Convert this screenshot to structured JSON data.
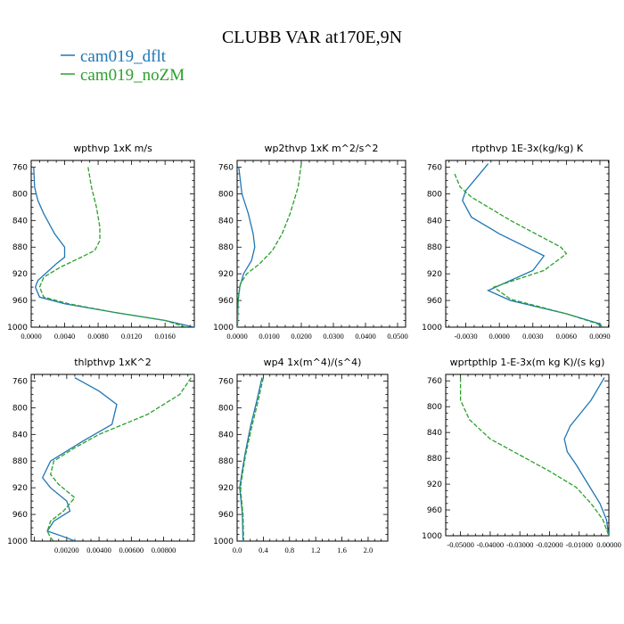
{
  "figure": {
    "title": "CLUBB VAR at170E,9N",
    "legend": [
      {
        "label": "cam019_dflt",
        "color": "#1f77b4",
        "dash": "solid"
      },
      {
        "label": "cam019_noZM",
        "color": "#2ca02c",
        "dash": "dashed"
      }
    ]
  },
  "chart_data": [
    {
      "type": "line",
      "title": "wpthvp   1xK m/s",
      "xlim": [
        0,
        0.0195
      ],
      "ylim": [
        1000,
        750
      ],
      "xticks": [
        {
          "v": 0.0,
          "label": "0.0000"
        },
        {
          "v": 0.004,
          "label": "0.0040"
        },
        {
          "v": 0.008,
          "label": "0.0080"
        },
        {
          "v": 0.012,
          "label": "0.0120"
        },
        {
          "v": 0.016,
          "label": "0.0160"
        }
      ],
      "yticks": [
        760,
        800,
        840,
        880,
        920,
        960,
        1000
      ],
      "series": [
        {
          "name": "cam019_dflt",
          "points": [
            [
              0.0003,
              760
            ],
            [
              0.0004,
              790
            ],
            [
              0.0008,
              810
            ],
            [
              0.0015,
              830
            ],
            [
              0.0028,
              860
            ],
            [
              0.004,
              880
            ],
            [
              0.004,
              895
            ],
            [
              0.003,
              905
            ],
            [
              0.0008,
              930
            ],
            [
              0.0005,
              940
            ],
            [
              0.001,
              955
            ],
            [
              0.004,
              965
            ],
            [
              0.01,
              978
            ],
            [
              0.016,
              990
            ],
            [
              0.0195,
              1000
            ]
          ]
        },
        {
          "name": "cam019_noZM",
          "points": [
            [
              0.0068,
              760
            ],
            [
              0.0072,
              790
            ],
            [
              0.0078,
              820
            ],
            [
              0.0082,
              850
            ],
            [
              0.0082,
              870
            ],
            [
              0.0076,
              885
            ],
            [
              0.006,
              895
            ],
            [
              0.0035,
              910
            ],
            [
              0.0015,
              925
            ],
            [
              0.001,
              940
            ],
            [
              0.0015,
              955
            ],
            [
              0.0045,
              965
            ],
            [
              0.01,
              978
            ],
            [
              0.016,
              990
            ],
            [
              0.0185,
              1000
            ]
          ]
        }
      ]
    },
    {
      "type": "line",
      "title": "wp2thvp   1xK m^2/s^2",
      "xlim": [
        0,
        0.0525
      ],
      "ylim": [
        1000,
        750
      ],
      "xticks": [
        {
          "v": 0.0,
          "label": "0.0000"
        },
        {
          "v": 0.01,
          "label": "0.0100"
        },
        {
          "v": 0.02,
          "label": "0.0200"
        },
        {
          "v": 0.03,
          "label": "0.0300"
        },
        {
          "v": 0.04,
          "label": "0.0400"
        },
        {
          "v": 0.05,
          "label": "0.0500"
        }
      ],
      "yticks": [
        760,
        800,
        840,
        880,
        920,
        960,
        1000
      ],
      "series": [
        {
          "name": "cam019_dflt",
          "points": [
            [
              0.0005,
              760
            ],
            [
              0.0015,
              800
            ],
            [
              0.0035,
              830
            ],
            [
              0.005,
              860
            ],
            [
              0.0055,
              880
            ],
            [
              0.0045,
              900
            ],
            [
              0.002,
              920
            ],
            [
              0.0008,
              940
            ],
            [
              0.0003,
              960
            ],
            [
              0.0001,
              1000
            ]
          ]
        },
        {
          "name": "cam019_noZM",
          "points": [
            [
              0.02,
              755
            ],
            [
              0.019,
              790
            ],
            [
              0.0165,
              830
            ],
            [
              0.014,
              860
            ],
            [
              0.011,
              885
            ],
            [
              0.007,
              905
            ],
            [
              0.003,
              920
            ],
            [
              0.001,
              935
            ],
            [
              0.0003,
              960
            ],
            [
              0.0001,
              1000
            ]
          ]
        }
      ]
    },
    {
      "type": "line",
      "title": "rtpthvp   1E-3x(kg/kg) K",
      "xlim": [
        -0.0048,
        0.0098
      ],
      "ylim": [
        1000,
        750
      ],
      "xticks": [
        {
          "v": -0.003,
          "label": "-0.0030"
        },
        {
          "v": 0.0,
          "label": "0.0000"
        },
        {
          "v": 0.003,
          "label": "0.0030"
        },
        {
          "v": 0.006,
          "label": "0.0060"
        },
        {
          "v": 0.009,
          "label": "0.0090"
        }
      ],
      "yticks": [
        760,
        800,
        840,
        880,
        920,
        960,
        1000
      ],
      "series": [
        {
          "name": "cam019_dflt",
          "points": [
            [
              -0.001,
              755
            ],
            [
              -0.002,
              775
            ],
            [
              -0.003,
              795
            ],
            [
              -0.0033,
              810
            ],
            [
              -0.0025,
              835
            ],
            [
              0.0,
              860
            ],
            [
              0.004,
              893
            ],
            [
              0.003,
              915
            ],
            [
              -0.001,
              945
            ],
            [
              0.001,
              960
            ],
            [
              0.006,
              980
            ],
            [
              0.009,
              995
            ],
            [
              0.0092,
              1000
            ]
          ]
        },
        {
          "name": "cam019_noZM",
          "points": [
            [
              -0.004,
              770
            ],
            [
              -0.0035,
              790
            ],
            [
              -0.0025,
              805
            ],
            [
              0.001,
              840
            ],
            [
              0.0055,
              880
            ],
            [
              0.006,
              890
            ],
            [
              0.004,
              915
            ],
            [
              -0.0005,
              940
            ],
            [
              0.001,
              958
            ],
            [
              0.006,
              980
            ],
            [
              0.0088,
              995
            ],
            [
              0.0092,
              1000
            ]
          ]
        }
      ]
    },
    {
      "type": "line",
      "title": "thlpthvp   1xK^2",
      "xlim": [
        -0.0002,
        0.0099
      ],
      "ylim": [
        1000,
        750
      ],
      "xticks": [
        {
          "v": 0.002,
          "label": "0.00200"
        },
        {
          "v": 0.004,
          "label": "0.00400"
        },
        {
          "v": 0.006,
          "label": "0.00600"
        },
        {
          "v": 0.008,
          "label": "0.00800"
        }
      ],
      "yticks": [
        760,
        800,
        840,
        880,
        920,
        960,
        1000
      ],
      "series": [
        {
          "name": "cam019_dflt",
          "points": [
            [
              0.0025,
              755
            ],
            [
              0.004,
              775
            ],
            [
              0.0051,
              795
            ],
            [
              0.0048,
              825
            ],
            [
              0.003,
              850
            ],
            [
              0.001,
              880
            ],
            [
              0.0005,
              905
            ],
            [
              0.001,
              920
            ],
            [
              0.002,
              940
            ],
            [
              0.0022,
              955
            ],
            [
              0.0012,
              970
            ],
            [
              0.0008,
              985
            ],
            [
              0.002,
              995
            ],
            [
              0.0025,
              1000
            ]
          ]
        },
        {
          "name": "cam019_noZM",
          "points": [
            [
              0.0097,
              755
            ],
            [
              0.009,
              780
            ],
            [
              0.007,
              810
            ],
            [
              0.004,
              840
            ],
            [
              0.0025,
              860
            ],
            [
              0.0012,
              880
            ],
            [
              0.001,
              900
            ],
            [
              0.0015,
              915
            ],
            [
              0.0025,
              935
            ],
            [
              0.0018,
              955
            ],
            [
              0.001,
              970
            ],
            [
              0.0008,
              985
            ],
            [
              0.001,
              995
            ],
            [
              0.0012,
              1000
            ]
          ]
        }
      ]
    },
    {
      "type": "line",
      "title": "wp4   1x(m^4)/(s^4)",
      "xlim": [
        0,
        2.3
      ],
      "ylim": [
        1000,
        750
      ],
      "xticks": [
        {
          "v": 0.0,
          "label": "0.0"
        },
        {
          "v": 0.4,
          "label": "0.4"
        },
        {
          "v": 0.8,
          "label": "0.8"
        },
        {
          "v": 1.2,
          "label": "1.2"
        },
        {
          "v": 1.6,
          "label": "1.6"
        },
        {
          "v": 2.0,
          "label": "2.0"
        }
      ],
      "yticks": [
        760,
        800,
        840,
        880,
        920,
        960,
        1000
      ],
      "series": [
        {
          "name": "cam019_dflt",
          "points": [
            [
              0.38,
              755
            ],
            [
              0.3,
              790
            ],
            [
              0.2,
              830
            ],
            [
              0.12,
              870
            ],
            [
              0.07,
              900
            ],
            [
              0.04,
              920
            ],
            [
              0.06,
              940
            ],
            [
              0.08,
              960
            ],
            [
              0.09,
              1000
            ]
          ]
        },
        {
          "name": "cam019_noZM",
          "points": [
            [
              0.4,
              755
            ],
            [
              0.32,
              790
            ],
            [
              0.22,
              830
            ],
            [
              0.13,
              870
            ],
            [
              0.08,
              900
            ],
            [
              0.05,
              920
            ],
            [
              0.07,
              940
            ],
            [
              0.09,
              960
            ],
            [
              0.1,
              1000
            ]
          ]
        }
      ]
    },
    {
      "type": "line",
      "title": "wprtpthlp   1-E-3x(m kg K)/(s kg)",
      "xlim": [
        -0.055,
        0.0
      ],
      "ylim": [
        1000,
        750
      ],
      "xticks": [
        {
          "v": -0.05,
          "label": "-0.05000"
        },
        {
          "v": -0.04,
          "label": "-0.04000"
        },
        {
          "v": -0.03,
          "label": "-0.03000"
        },
        {
          "v": -0.02,
          "label": "-0.02000"
        },
        {
          "v": -0.01,
          "label": "-0.01000"
        },
        {
          "v": 0.0,
          "label": "0.00000"
        }
      ],
      "yticks": [
        760,
        800,
        840,
        880,
        920,
        960,
        1000
      ],
      "series": [
        {
          "name": "cam019_dflt",
          "points": [
            [
              -0.0015,
              755
            ],
            [
              -0.006,
              790
            ],
            [
              -0.013,
              830
            ],
            [
              -0.015,
              850
            ],
            [
              -0.014,
              870
            ],
            [
              -0.011,
              890
            ],
            [
              -0.007,
              920
            ],
            [
              -0.003,
              950
            ],
            [
              -0.0008,
              975
            ],
            [
              0.0,
              1000
            ]
          ]
        },
        {
          "name": "cam019_noZM",
          "points": [
            [
              -0.05,
              755
            ],
            [
              -0.05,
              790
            ],
            [
              -0.047,
              820
            ],
            [
              -0.04,
              850
            ],
            [
              -0.03,
              875
            ],
            [
              -0.02,
              900
            ],
            [
              -0.011,
              925
            ],
            [
              -0.006,
              950
            ],
            [
              -0.002,
              975
            ],
            [
              0.0,
              1000
            ]
          ]
        }
      ]
    }
  ]
}
